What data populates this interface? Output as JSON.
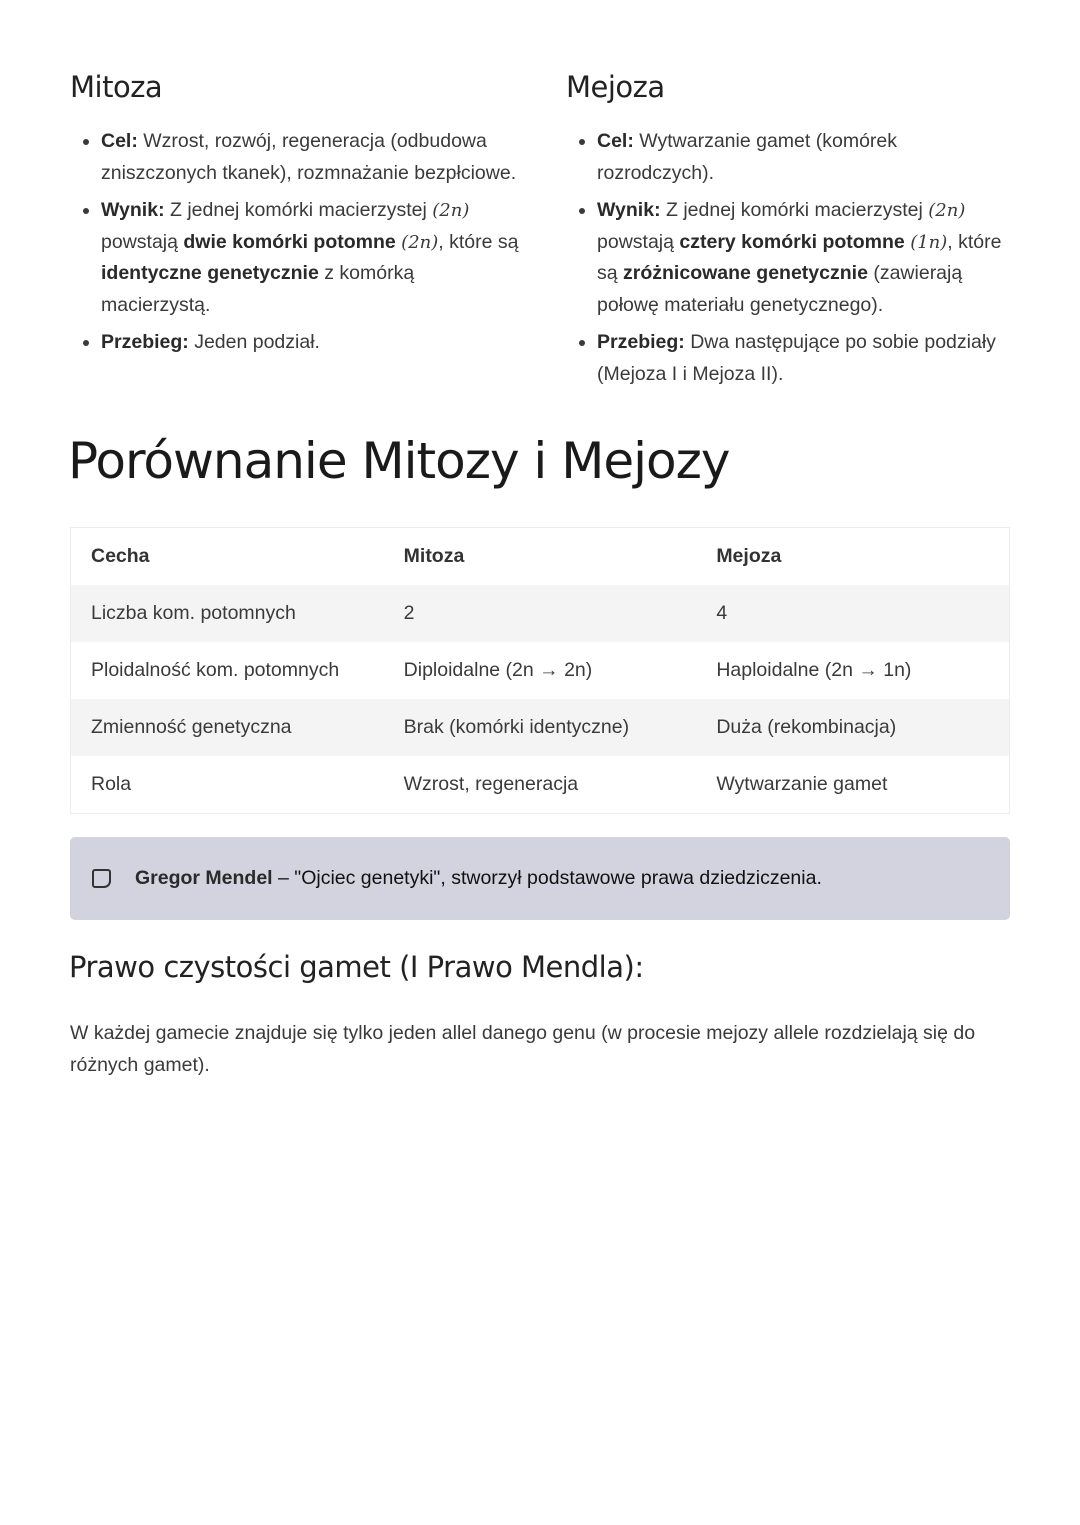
{
  "mitoza": {
    "title": "Mitoza",
    "items": [
      [
        {
          "t": "Cel:",
          "b": 1
        },
        {
          "t": " Wzrost, rozwój, regeneracja (odbudowa zniszczonych tkanek), rozmnażanie bezpłciowe."
        }
      ],
      [
        {
          "t": "Wynik:",
          "b": 1
        },
        {
          "t": " Z jednej komórki macierzystej "
        },
        {
          "t": "(2n)",
          "m": 1
        },
        {
          "t": " powstają "
        },
        {
          "t": "dwie komórki potomne",
          "b": 1
        },
        {
          "t": " "
        },
        {
          "t": "(2n)",
          "m": 1
        },
        {
          "t": ", które są "
        },
        {
          "t": "identyczne genetycznie",
          "b": 1
        },
        {
          "t": " z komórką macierzystą."
        }
      ],
      [
        {
          "t": "Przebieg:",
          "b": 1
        },
        {
          "t": " Jeden podział."
        }
      ]
    ]
  },
  "mejoza": {
    "title": "Mejoza",
    "items": [
      [
        {
          "t": "Cel:",
          "b": 1
        },
        {
          "t": " Wytwarzanie gamet (komórek rozrodczych)."
        }
      ],
      [
        {
          "t": "Wynik:",
          "b": 1
        },
        {
          "t": " Z jednej komórki macierzystej "
        },
        {
          "t": "(2n)",
          "m": 1
        },
        {
          "t": " powstają "
        },
        {
          "t": "cztery komórki potomne",
          "b": 1
        },
        {
          "t": " "
        },
        {
          "t": "(1n)",
          "m": 1
        },
        {
          "t": ", które są "
        },
        {
          "t": "zróżnicowane genetycznie",
          "b": 1
        },
        {
          "t": " (zawierają połowę materiału genetycznego)."
        }
      ],
      [
        {
          "t": "Przebieg:",
          "b": 1
        },
        {
          "t": " Dwa następujące po sobie podziały (Mejoza I i Mejoza II)."
        }
      ]
    ]
  },
  "comparison": {
    "title": "Porównanie Mitozy i Mejozy",
    "headers": [
      "Cecha",
      "Mitoza",
      "Mejoza"
    ],
    "rows": [
      [
        "Liczba kom. potomnych",
        "2",
        "4"
      ],
      [
        "Ploidalność kom. potomnych",
        "Diploidalne (2n → 2n)",
        "Haploidalne (2n → 1n)"
      ],
      [
        "Zmienność genetyczna",
        "Brak (komórki identyczne)",
        "Duża (rekombinacja)"
      ],
      [
        "Rola",
        "Wzrost, regeneracja",
        "Wytwarzanie gamet"
      ]
    ]
  },
  "callout": {
    "icon": "sticky-note-icon",
    "bold": "Gregor Mendel",
    "text": " – \"Ojciec genetyki\", stworzył podstawowe prawa dziedziczenia."
  },
  "law": {
    "title": "Prawo czystości gamet (I Prawo Mendla):",
    "text": "W każdej gamecie znajduje się tylko jeden allel danego genu (w procesie mejozy allele rozdzielają się do różnych gamet)."
  }
}
